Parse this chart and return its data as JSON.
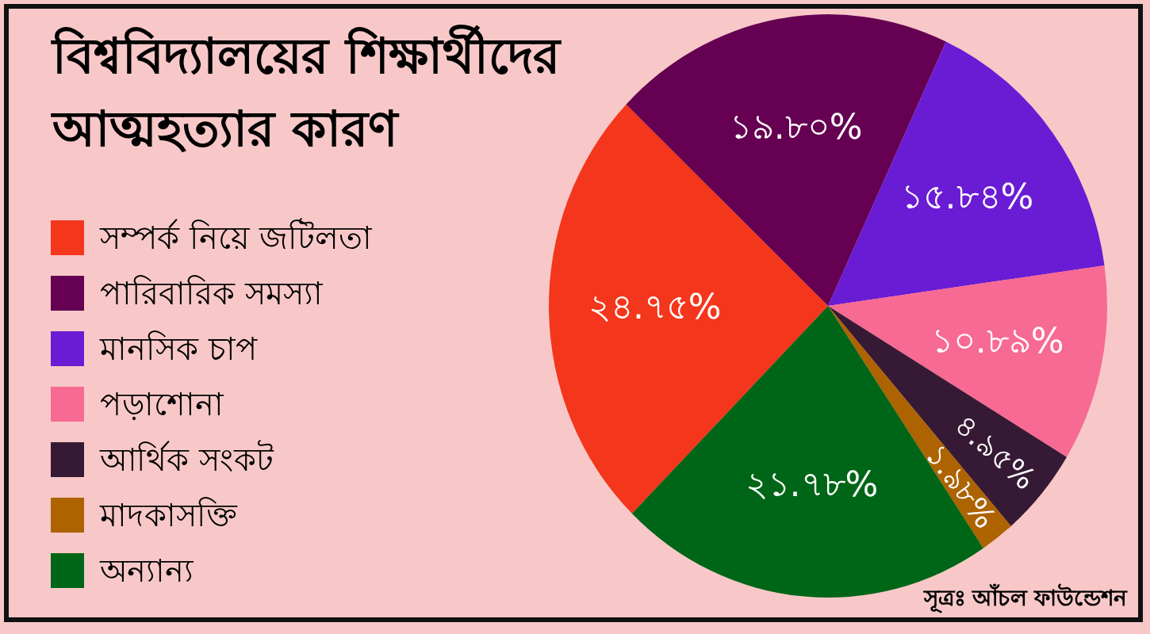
{
  "chart_data": {
    "type": "pie",
    "title": "বিশ্ববিদ্যালয়ের শিক্ষার্থীদের আত্মহত্যার কারণ",
    "categories": [
      "সম্পর্ক নিয়ে জটিলতা",
      "পারিবারিক সমস্যা",
      "মানসিক চাপ",
      "পড়াশোনা",
      "আর্থিক সংকট",
      "মাদকাসক্তি",
      "অন্যান্য"
    ],
    "values": [
      24.75,
      19.8,
      15.84,
      10.89,
      4.95,
      1.98,
      21.78
    ],
    "colors": [
      "#f4361c",
      "#650052",
      "#6a1cd4",
      "#f76a93",
      "#361a35",
      "#ad6300",
      "#006617"
    ],
    "value_labels": [
      "২৪.৭৫%",
      "১৯.৮০%",
      "১৫.৮৪%",
      "১০.৮৯%",
      "৪.৯৫%",
      "১.৯৮%",
      "২১.৭৮%"
    ],
    "legend": "left",
    "annotations": [
      "সূত্রঃ আঁচল ফাউন্ডেশন"
    ]
  }
}
